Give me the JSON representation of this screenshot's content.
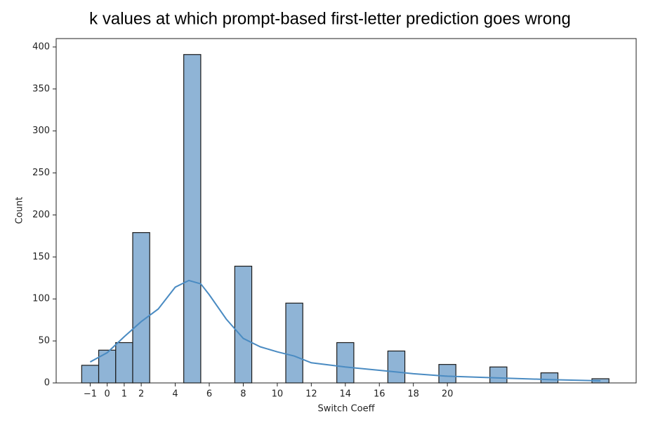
{
  "chart_data": {
    "type": "histogram",
    "title": "k values at which prompt-based first-letter prediction goes wrong",
    "xlabel": "Switch Coeff",
    "ylabel": "Count",
    "bins": [
      -1.5,
      -0.5,
      0.5,
      1.5,
      2.5,
      3.5,
      4.5,
      5.5,
      6.5,
      7.5,
      8.5,
      9.5,
      10.5,
      11.5,
      12.5,
      13.5,
      14.5,
      15.5,
      16.5,
      17.5,
      18.5,
      19.5,
      20.5,
      21.5,
      22.5,
      23.5,
      24.5,
      25.5,
      26.5,
      27.5,
      28.5,
      29.5
    ],
    "values": [
      21,
      39,
      48,
      179,
      0,
      0,
      391,
      0,
      0,
      139,
      0,
      0,
      95,
      0,
      0,
      48,
      0,
      0,
      38,
      0,
      0,
      22,
      0,
      0,
      19,
      0,
      0,
      12,
      0,
      0,
      5
    ],
    "color": "#8fb4d6",
    "edgecolor": "#1a1a1a",
    "kde": {
      "color": "#4a8bc2",
      "x": [
        -1,
        0,
        1,
        2,
        3,
        4,
        4.8,
        5.5,
        6,
        7,
        8,
        9,
        10,
        11,
        12,
        14,
        16,
        17,
        18,
        20,
        23,
        26,
        29
      ],
      "values": [
        25,
        36,
        55,
        73,
        88,
        114,
        122,
        118,
        105,
        76,
        53,
        43,
        37,
        32,
        24,
        19,
        15,
        13,
        11,
        8,
        6,
        4,
        2.5
      ]
    },
    "xlim": [
      -3.0,
      31.1
    ],
    "ylim": [
      0,
      410
    ],
    "xticks": [
      {
        "value": -1,
        "label": "−1"
      },
      0,
      1,
      2,
      4,
      6,
      8,
      10,
      12,
      14,
      16,
      18,
      20
    ],
    "yticks": [
      0,
      50,
      100,
      150,
      200,
      250,
      300,
      350,
      400
    ]
  }
}
